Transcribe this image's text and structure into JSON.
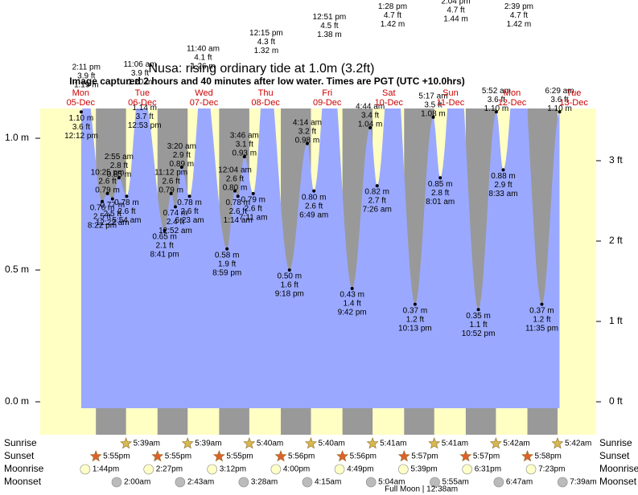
{
  "chart_data": {
    "type": "tide",
    "title": "Nusa: rising  ordinary tide at 1.0m (3.2ft)",
    "subtitle": "Image captured 2 hours and 40 minutes after low water. Times are PGT (UTC +10.0hrs)",
    "ylim": [
      -0.125,
      1.113
    ],
    "yticks": [
      {
        "value": 0,
        "label": "0.0 m"
      },
      {
        "value": 0.5,
        "label": "0.5 m"
      },
      {
        "value": 1,
        "label": "1.0 m"
      }
    ],
    "y2lim": [
      -0.41,
      3.65
    ],
    "y2ticks": [
      {
        "value": 0,
        "label": "0 ft"
      },
      {
        "value": 1,
        "label": "1 ft"
      },
      {
        "value": 2,
        "label": "2 ft"
      },
      {
        "value": 3,
        "label": "3 ft"
      }
    ],
    "colors": {
      "tide": "#9aa9ff",
      "day": "#ffffc4",
      "night": "#999999",
      "header": "#cc0000",
      "sunrise": "#d8b850",
      "sunset": "#e0602a",
      "moonrise": "#ffffc8",
      "moonset": "#bbbbbb"
    },
    "row_labels": [
      "Sunrise",
      "Sunset",
      "Moonrise",
      "Moonset"
    ],
    "moon_phase": {
      "day": "Sun",
      "text": "Full Moon | 12:38am"
    },
    "days": [
      {
        "name": "Mon",
        "date": "05-Dec",
        "sunrise": null,
        "sunset": "5:55pm",
        "moonrise": "1:44pm",
        "moonset": null,
        "tides": [
          {
            "time": "12:12 pm",
            "height": 1.1,
            "height_label": "1.10 m",
            "feet_label": "3.6 ft"
          },
          {
            "time": "2:11 pm",
            "height": 1.19,
            "height_label": "1.19 m",
            "feet_label": "3.9 ft"
          },
          {
            "time": "8:22 pm",
            "height": 0.76,
            "height_label": "0.76 m",
            "feet_label": "2.5 ft"
          },
          {
            "time": "10:25 pm",
            "height": 0.79,
            "height_label": "0.79 m",
            "feet_label": "2.6 ft"
          }
        ]
      },
      {
        "name": "Tue",
        "date": "06-Dec",
        "sunrise": "5:39am",
        "sunset": "5:55pm",
        "moonrise": "2:27pm",
        "moonset": "2:00am",
        "tides": [
          {
            "time": "12:22 am",
            "height": 0.77,
            "height_label": "0.77 m",
            "feet_label": "2.5 ft"
          },
          {
            "time": "2:55 am",
            "height": 0.85,
            "height_label": "0.85 m",
            "feet_label": "2.8 ft"
          },
          {
            "time": "5:54 am",
            "height": 0.78,
            "height_label": "0.78 m",
            "feet_label": "2.6 ft"
          },
          {
            "time": "11:06 am",
            "height": 1.2,
            "height_label": "1.20 m",
            "feet_label": "3.9 ft"
          },
          {
            "time": "12:53 pm",
            "height": 1.14,
            "height_label": "1.14 m",
            "feet_label": "3.7 ft"
          },
          {
            "time": "8:41 pm",
            "height": 0.65,
            "height_label": "0.65 m",
            "feet_label": "2.1 ft"
          },
          {
            "time": "11:12 pm",
            "height": 0.79,
            "height_label": "0.79 m",
            "feet_label": "2.6 ft"
          }
        ]
      },
      {
        "name": "Wed",
        "date": "07-Dec",
        "sunrise": "5:39am",
        "sunset": "5:55pm",
        "moonrise": "3:12pm",
        "moonset": "2:43am",
        "tides": [
          {
            "time": "12:52 am",
            "height": 0.74,
            "height_label": "0.74 m",
            "feet_label": "2.4 ft"
          },
          {
            "time": "3:20 am",
            "height": 0.89,
            "height_label": "0.89 m",
            "feet_label": "2.9 ft"
          },
          {
            "time": "6:23 am",
            "height": 0.78,
            "height_label": "0.78 m",
            "feet_label": "2.6 ft"
          },
          {
            "time": "11:40 am",
            "height": 1.26,
            "height_label": "1.26 m",
            "feet_label": "4.1 ft"
          },
          {
            "time": "8:59 pm",
            "height": 0.58,
            "height_label": "0.58 m",
            "feet_label": "1.9 ft"
          }
        ]
      },
      {
        "name": "Thu",
        "date": "08-Dec",
        "sunrise": "5:40am",
        "sunset": "5:56pm",
        "moonrise": "4:00pm",
        "moonset": "3:28am",
        "tides": [
          {
            "time": "12:04 am",
            "height": 0.8,
            "height_label": "0.80 m",
            "feet_label": "2.6 ft"
          },
          {
            "time": "1:14 am",
            "height": 0.78,
            "height_label": "0.78 m",
            "feet_label": "2.6 ft"
          },
          {
            "time": "3:46 am",
            "height": 0.93,
            "height_label": "0.93 m",
            "feet_label": "3.1 ft"
          },
          {
            "time": "7:11 am",
            "height": 0.79,
            "height_label": "0.79 m",
            "feet_label": "2.6 ft"
          },
          {
            "time": "12:15 pm",
            "height": 1.32,
            "height_label": "1.32 m",
            "feet_label": "4.3 ft"
          },
          {
            "time": "9:18 pm",
            "height": 0.5,
            "height_label": "0.50 m",
            "feet_label": "1.6 ft"
          }
        ]
      },
      {
        "name": "Fri",
        "date": "09-Dec",
        "sunrise": "5:40am",
        "sunset": "5:56pm",
        "moonrise": "4:49pm",
        "moonset": "4:15am",
        "tides": [
          {
            "time": "4:14 am",
            "height": 0.98,
            "height_label": "0.98 m",
            "feet_label": "3.2 ft"
          },
          {
            "time": "6:49 am",
            "height": 0.8,
            "height_label": "0.80 m",
            "feet_label": "2.6 ft"
          },
          {
            "time": "12:51 pm",
            "height": 1.38,
            "height_label": "1.38 m",
            "feet_label": "4.5 ft"
          },
          {
            "time": "9:42 pm",
            "height": 0.43,
            "height_label": "0.43 m",
            "feet_label": "1.4 ft"
          }
        ]
      },
      {
        "name": "Sat",
        "date": "10-Dec",
        "sunrise": "5:41am",
        "sunset": "5:57pm",
        "moonrise": "5:39pm",
        "moonset": "5:04am",
        "tides": [
          {
            "time": "4:44 am",
            "height": 1.04,
            "height_label": "1.04 m",
            "feet_label": "3.4 ft"
          },
          {
            "time": "7:26 am",
            "height": 0.82,
            "height_label": "0.82 m",
            "feet_label": "2.7 ft"
          },
          {
            "time": "1:28 pm",
            "height": 1.42,
            "height_label": "1.42 m",
            "feet_label": "4.7 ft"
          },
          {
            "time": "10:13 pm",
            "height": 0.37,
            "height_label": "0.37 m",
            "feet_label": "1.2 ft"
          }
        ]
      },
      {
        "name": "Sun",
        "date": "11-Dec",
        "sunrise": "5:41am",
        "sunset": "5:57pm",
        "moonrise": "6:31pm",
        "moonset": "5:55am",
        "tides": [
          {
            "time": "5:17 am",
            "height": 1.08,
            "height_label": "1.08 m",
            "feet_label": "3.5 ft"
          },
          {
            "time": "8:01 am",
            "height": 0.85,
            "height_label": "0.85 m",
            "feet_label": "2.8 ft"
          },
          {
            "time": "2:04 pm",
            "height": 1.44,
            "height_label": "1.44 m",
            "feet_label": "4.7 ft"
          },
          {
            "time": "10:52 pm",
            "height": 0.35,
            "height_label": "0.35 m",
            "feet_label": "1.1 ft"
          }
        ]
      },
      {
        "name": "Mon",
        "date": "12-Dec",
        "sunrise": "5:42am",
        "sunset": "5:58pm",
        "moonrise": "7:23pm",
        "moonset": "6:47am",
        "tides": [
          {
            "time": "5:52 am",
            "height": 1.1,
            "height_label": "1.10 m",
            "feet_label": "3.6 ft"
          },
          {
            "time": "8:33 am",
            "height": 0.88,
            "height_label": "0.88 m",
            "feet_label": "2.9 ft"
          },
          {
            "time": "2:39 pm",
            "height": 1.42,
            "height_label": "1.42 m",
            "feet_label": "4.7 ft"
          },
          {
            "time": "11:35 pm",
            "height": 0.37,
            "height_label": "0.37 m",
            "feet_label": "1.2 ft"
          }
        ]
      },
      {
        "name": "Tue",
        "date": "13-Dec",
        "sunrise": "5:42am",
        "sunset": null,
        "moonrise": null,
        "moonset": "7:39am",
        "tides": [
          {
            "time": "6:29 am",
            "height": 1.1,
            "height_label": "1.10 m",
            "feet_label": "3.6 ft"
          }
        ]
      }
    ]
  }
}
